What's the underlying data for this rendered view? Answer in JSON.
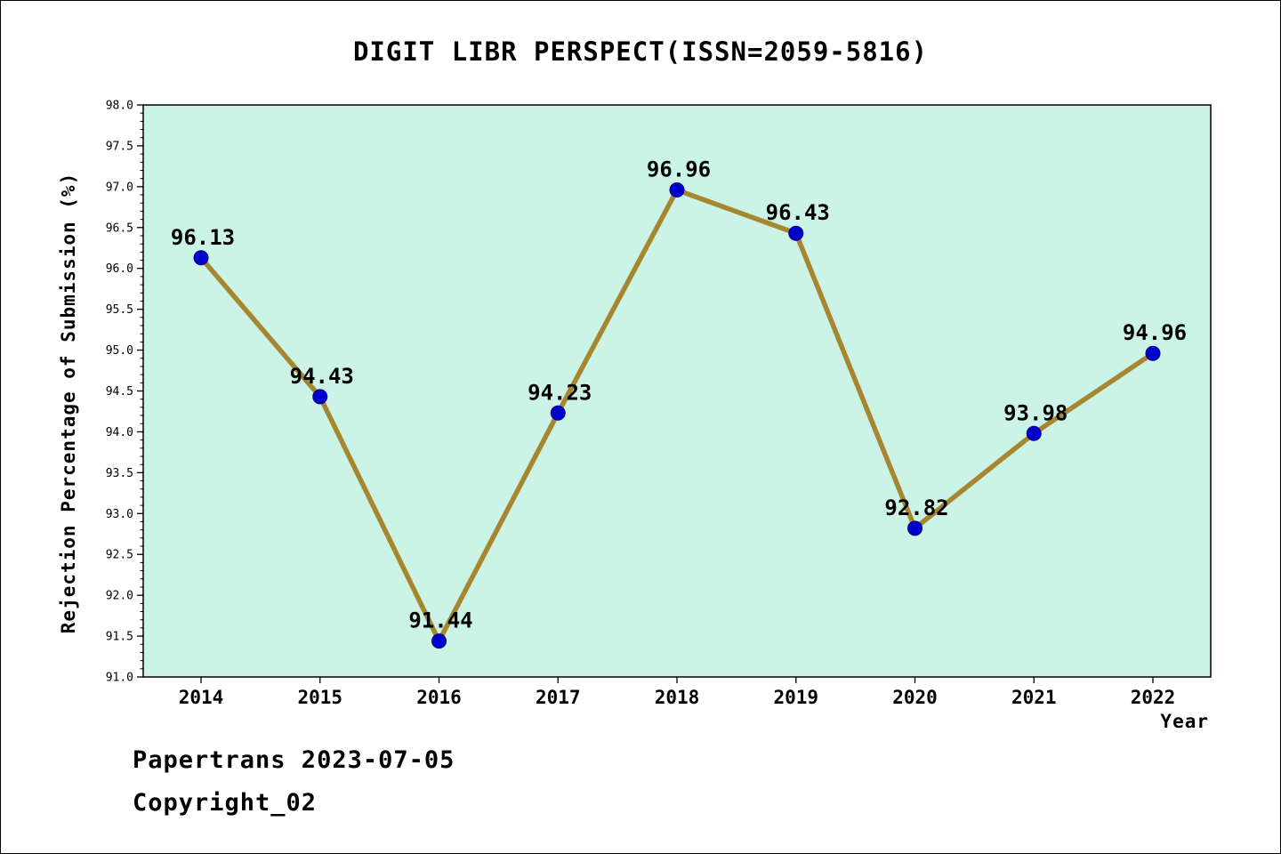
{
  "footer": {
    "line1": "Papertrans 2023-07-05",
    "line2": "Copyright_02"
  },
  "chart_data": {
    "type": "line",
    "title": "DIGIT LIBR PERSPECT(ISSN=2059-5816)",
    "xlabel": "Year",
    "ylabel": "Rejection Percentage of Submission (%)",
    "categories": [
      "2014",
      "2015",
      "2016",
      "2017",
      "2018",
      "2019",
      "2020",
      "2021",
      "2022"
    ],
    "values": [
      96.13,
      94.43,
      91.44,
      94.23,
      96.96,
      96.43,
      92.82,
      93.98,
      94.96
    ],
    "point_labels": [
      "96.13",
      "94.43",
      "91.44",
      "94.23",
      "96.96",
      "96.43",
      "92.82",
      "93.98",
      "94.96"
    ],
    "ylim": [
      91.0,
      98.0
    ],
    "ytick_step": 0.5,
    "ytick_minor_step": 0.1,
    "grid": false,
    "legend": "none",
    "colors": {
      "line": "#a6872f",
      "marker_fill": "#0000cd",
      "marker_edge": "#00008b",
      "plot_background": "#cbf3e6",
      "axis": "#000000"
    }
  }
}
